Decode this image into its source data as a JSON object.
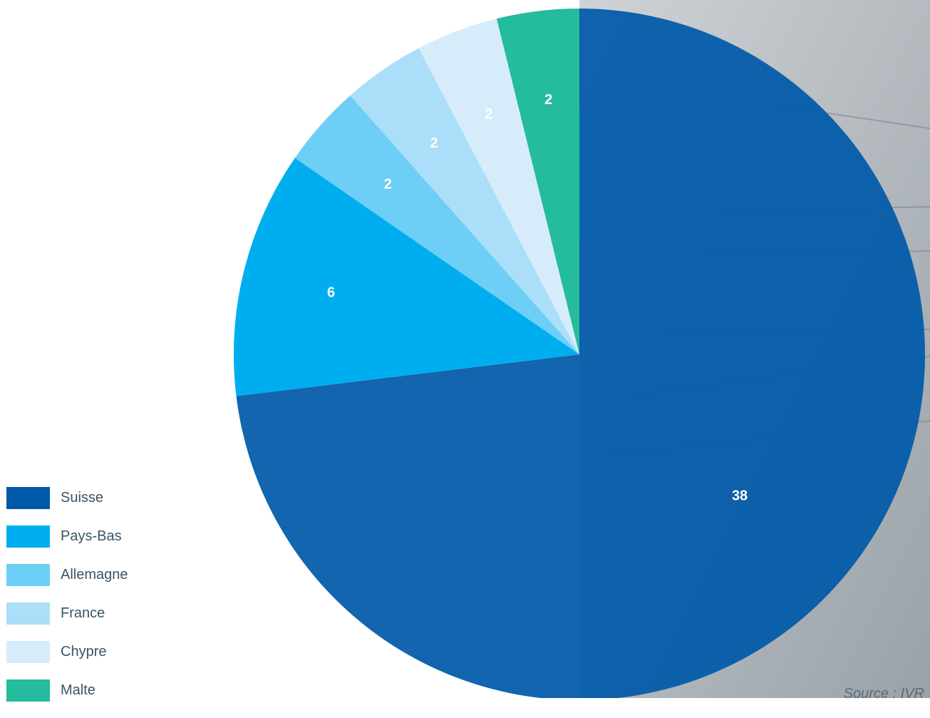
{
  "chart_data": {
    "type": "pie",
    "slices": [
      {
        "label": "Suisse",
        "value": 38,
        "color": "#0059a8",
        "label_color": "#ffffff"
      },
      {
        "label": "Pays-Bas",
        "value": 6,
        "color": "#00aeef",
        "label_color": "#ffffff"
      },
      {
        "label": "Allemagne",
        "value": 2,
        "color": "#6dcff6",
        "label_color": "#ffffff"
      },
      {
        "label": "France",
        "value": 2,
        "color": "#abdff9",
        "label_color": "#ffffff"
      },
      {
        "label": "Chypre",
        "value": 2,
        "color": "#d6ecfa",
        "label_color": "#ffffff"
      },
      {
        "label": "Malte",
        "value": 2,
        "color": "#24bc9c",
        "label_color": "#ffffff"
      }
    ],
    "legend_position": "bottom-left"
  },
  "source_text": "Source : IVR"
}
